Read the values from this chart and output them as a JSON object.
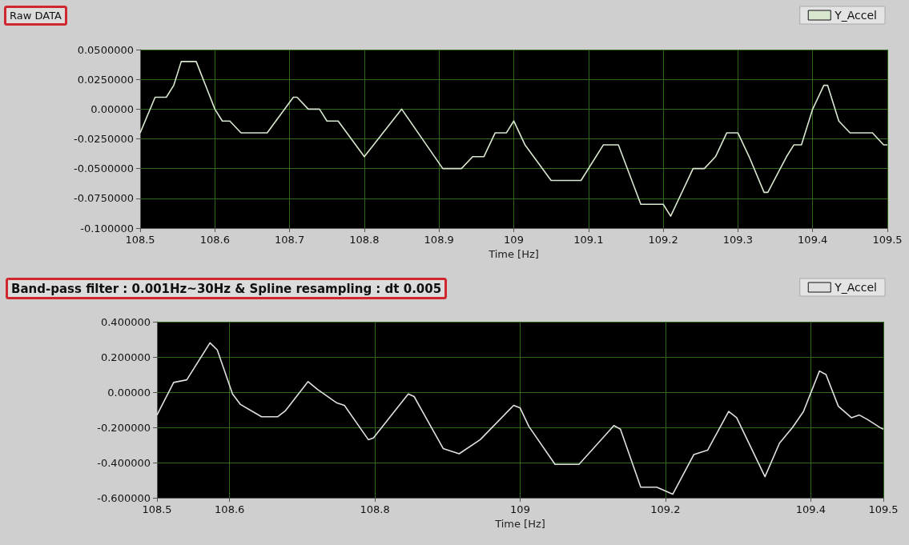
{
  "chart_data": [
    {
      "type": "line",
      "title": "Raw DATA",
      "xlabel": "Time [Hz]",
      "legend": "top right",
      "grid": true,
      "xlim": [
        108.5,
        109.5
      ],
      "xticks": [
        108.5,
        108.6,
        108.7,
        108.8,
        108.9,
        109,
        109.1,
        109.2,
        109.3,
        109.4,
        109.5
      ],
      "ylim": [
        -0.1,
        0.05
      ],
      "yticks": [
        {
          "value": 0.05,
          "label": "0.0500000"
        },
        {
          "value": 0.025,
          "label": "0.0250000"
        },
        {
          "value": 0,
          "label": "0.00000"
        },
        {
          "value": -0.025,
          "label": "-0.0250000"
        },
        {
          "value": -0.05,
          "label": "-0.0500000"
        },
        {
          "value": -0.075,
          "label": "-0.0750000"
        },
        {
          "value": -0.1,
          "label": "-0.100000"
        }
      ],
      "x": [
        108.5,
        108.52,
        108.535,
        108.545,
        108.555,
        108.575,
        108.6,
        108.61,
        108.62,
        108.635,
        108.67,
        108.705,
        108.71,
        108.725,
        108.74,
        108.75,
        108.765,
        108.8,
        108.85,
        108.905,
        108.93,
        108.945,
        108.96,
        108.975,
        108.99,
        109.0,
        109.015,
        109.05,
        109.09,
        109.12,
        109.14,
        109.17,
        109.2,
        109.21,
        109.24,
        109.255,
        109.27,
        109.285,
        109.3,
        109.315,
        109.335,
        109.34,
        109.365,
        109.375,
        109.385,
        109.4,
        109.415,
        109.42,
        109.435,
        109.45,
        109.48,
        109.495,
        109.5
      ],
      "series": [
        {
          "name": "Y_Accel",
          "color": "#d8e8d0",
          "values": [
            -0.02,
            0.01,
            0.01,
            0.02,
            0.04,
            0.04,
            0.0,
            -0.01,
            -0.01,
            -0.02,
            -0.02,
            0.01,
            0.01,
            0.0,
            0.0,
            -0.01,
            -0.01,
            -0.04,
            0.0,
            -0.05,
            -0.05,
            -0.04,
            -0.04,
            -0.02,
            -0.02,
            -0.01,
            -0.03,
            -0.06,
            -0.06,
            -0.03,
            -0.03,
            -0.08,
            -0.08,
            -0.09,
            -0.05,
            -0.05,
            -0.04,
            -0.02,
            -0.02,
            -0.04,
            -0.07,
            -0.07,
            -0.04,
            -0.03,
            -0.03,
            0.0,
            0.02,
            0.02,
            -0.01,
            -0.02,
            -0.02,
            -0.03,
            -0.03
          ]
        }
      ]
    },
    {
      "type": "line",
      "title": "Band-pass filter : 0.001Hz~30Hz & Spline resampling : dt 0.005",
      "xlabel": "Time [Hz]",
      "legend": "top right",
      "grid": true,
      "xlim": [
        108.5,
        109.5
      ],
      "xticks": [
        108.5,
        108.6,
        108.8,
        109,
        109.2,
        109.4,
        109.5
      ],
      "ylim": [
        -0.6,
        0.4
      ],
      "yticks": [
        {
          "value": 0.4,
          "label": "0.400000"
        },
        {
          "value": 0.2,
          "label": "0.200000"
        },
        {
          "value": 0,
          "label": "0.00000"
        },
        {
          "value": -0.2,
          "label": "-0.200000"
        },
        {
          "value": -0.4,
          "label": "-0.400000"
        },
        {
          "value": -0.6,
          "label": "-0.600000"
        }
      ],
      "x": [
        108.5,
        108.523,
        108.541,
        108.573,
        108.583,
        108.604,
        108.615,
        108.644,
        108.666,
        108.677,
        108.708,
        108.721,
        108.747,
        108.758,
        108.791,
        108.798,
        108.846,
        108.854,
        108.894,
        108.916,
        108.945,
        108.991,
        109.0,
        109.012,
        109.048,
        109.081,
        109.129,
        109.138,
        109.166,
        109.188,
        109.21,
        109.239,
        109.258,
        109.287,
        109.298,
        109.337,
        109.357,
        109.375,
        109.39,
        109.412,
        109.421,
        109.438,
        109.456,
        109.467,
        109.478,
        109.497,
        109.5
      ],
      "series": [
        {
          "name": "Y_Accel",
          "color": "#e0e0e0",
          "values": [
            -0.13,
            0.055,
            0.07,
            0.28,
            0.24,
            -0.01,
            -0.07,
            -0.14,
            -0.14,
            -0.105,
            0.06,
            0.015,
            -0.06,
            -0.075,
            -0.27,
            -0.26,
            -0.01,
            -0.025,
            -0.32,
            -0.35,
            -0.27,
            -0.075,
            -0.09,
            -0.195,
            -0.41,
            -0.41,
            -0.19,
            -0.21,
            -0.54,
            -0.54,
            -0.58,
            -0.355,
            -0.33,
            -0.11,
            -0.145,
            -0.48,
            -0.29,
            -0.2,
            -0.11,
            0.12,
            0.1,
            -0.08,
            -0.145,
            -0.13,
            -0.155,
            -0.205,
            -0.21
          ]
        }
      ]
    }
  ]
}
